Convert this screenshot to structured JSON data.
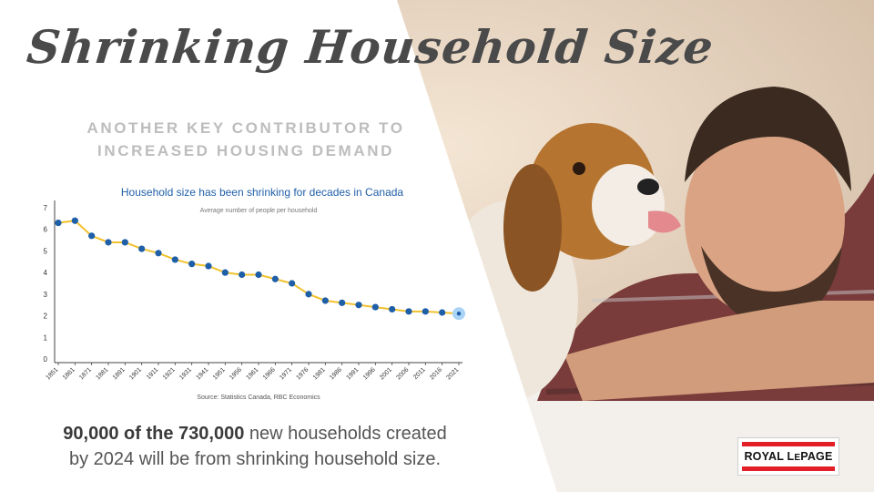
{
  "slide": {
    "title": "Shrinking Household Size",
    "subtitle_line1": "ANOTHER KEY CONTRIBUTOR TO",
    "subtitle_line2": "INCREASED HOUSING DEMAND",
    "footnote_bold": "90,000 of the 730,000",
    "footnote_rest_line1": " new households created",
    "footnote_line2": "by 2024 will be from shrinking household size.",
    "logo_text": "ROYAL LEPAGE",
    "logo_color": "#e21e26"
  },
  "chart_data": {
    "type": "line",
    "title": "Household size has been shrinking for decades in Canada",
    "subtitle": "Average number of people per household",
    "source": "Source: Statistics Canada, RBC Economics",
    "x": [
      "1851",
      "1861",
      "1871",
      "1881",
      "1891",
      "1901",
      "1911",
      "1921",
      "1931",
      "1941",
      "1951",
      "1956",
      "1961",
      "1966",
      "1971",
      "1976",
      "1981",
      "1986",
      "1991",
      "1996",
      "2001",
      "2006",
      "2011",
      "2016",
      "2021"
    ],
    "series": [
      {
        "values": [
          6.3,
          6.4,
          5.7,
          5.4,
          5.4,
          5.1,
          4.9,
          4.6,
          4.4,
          4.3,
          4.0,
          3.9,
          3.9,
          3.7,
          3.5,
          3.0,
          2.7,
          2.6,
          2.5,
          2.4,
          2.3,
          2.2,
          2.2,
          2.15,
          2.1
        ]
      }
    ],
    "y_ticks": [
      "0",
      "1",
      "2",
      "3",
      "4",
      "5",
      "6",
      "7"
    ],
    "ylim": [
      0,
      7
    ],
    "grid": false,
    "colors": {
      "line": "#f2c12e",
      "marker": "#1f5fa8",
      "highlight": "#a9d4f5",
      "title": "#1f5fa8"
    }
  }
}
